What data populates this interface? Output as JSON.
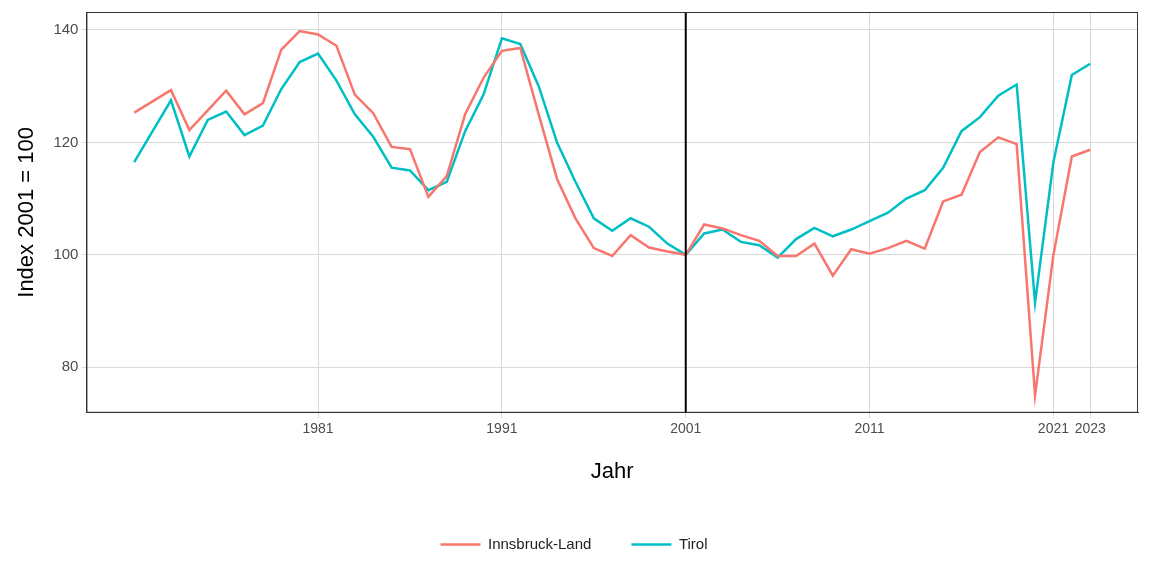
{
  "chart_data": {
    "type": "line",
    "x_label": "Jahr",
    "y_label": "Index 2001 = 100",
    "x": [
      1971,
      1972,
      1973,
      1974,
      1975,
      1976,
      1977,
      1978,
      1979,
      1980,
      1981,
      1982,
      1983,
      1984,
      1985,
      1986,
      1987,
      1988,
      1989,
      1990,
      1991,
      1992,
      1993,
      1994,
      1995,
      1996,
      1997,
      1998,
      1999,
      2000,
      2001,
      2002,
      2003,
      2004,
      2005,
      2006,
      2007,
      2008,
      2009,
      2010,
      2011,
      2012,
      2013,
      2014,
      2015,
      2016,
      2017,
      2018,
      2019,
      2020,
      2021,
      2022,
      2023
    ],
    "series": [
      {
        "name": "Innsbruck-Land",
        "color": "#F8766D",
        "values": [
          125.3,
          127.3,
          129.3,
          122.2,
          125.7,
          129.2,
          125.0,
          127.0,
          136.5,
          139.8,
          139.2,
          137.2,
          128.5,
          125.2,
          119.2,
          118.8,
          110.3,
          114.0,
          125.0,
          131.5,
          136.3,
          136.8,
          125.0,
          113.5,
          106.5,
          101.2,
          99.8,
          103.5,
          101.3,
          100.6,
          100.0,
          105.4,
          104.7,
          103.5,
          102.5,
          99.8,
          99.8,
          102.0,
          96.3,
          101.0,
          100.2,
          101.2,
          102.5,
          101.1,
          109.5,
          110.7,
          118.3,
          120.9,
          119.7,
          75.0,
          100.0,
          117.5,
          118.7
        ]
      },
      {
        "name": "Tirol",
        "color": "#00BFC4",
        "values": [
          116.5,
          122.0,
          127.5,
          117.5,
          124.0,
          125.5,
          121.3,
          123.0,
          129.5,
          134.3,
          135.8,
          131.0,
          125.0,
          121.0,
          115.5,
          115.0,
          111.5,
          113.0,
          122.0,
          128.5,
          138.5,
          137.5,
          130.0,
          120.0,
          113.0,
          106.5,
          104.3,
          106.5,
          105.0,
          102.0,
          100.0,
          103.8,
          104.5,
          102.3,
          101.7,
          99.5,
          102.8,
          104.8,
          103.3,
          104.5,
          106.0,
          107.5,
          110.0,
          111.5,
          115.5,
          122.0,
          124.5,
          128.3,
          130.3,
          91.5,
          116.5,
          132.0,
          134.0
        ]
      }
    ],
    "vline": 2001,
    "xlim": [
      1968.4,
      2025.6
    ],
    "xticks": [
      1981,
      1991,
      2001,
      2011,
      2021,
      2023
    ],
    "ylim": [
      71.9,
      143.2
    ],
    "yticks": [
      80,
      100,
      120,
      140
    ],
    "grid": true,
    "legend": "bottom"
  }
}
